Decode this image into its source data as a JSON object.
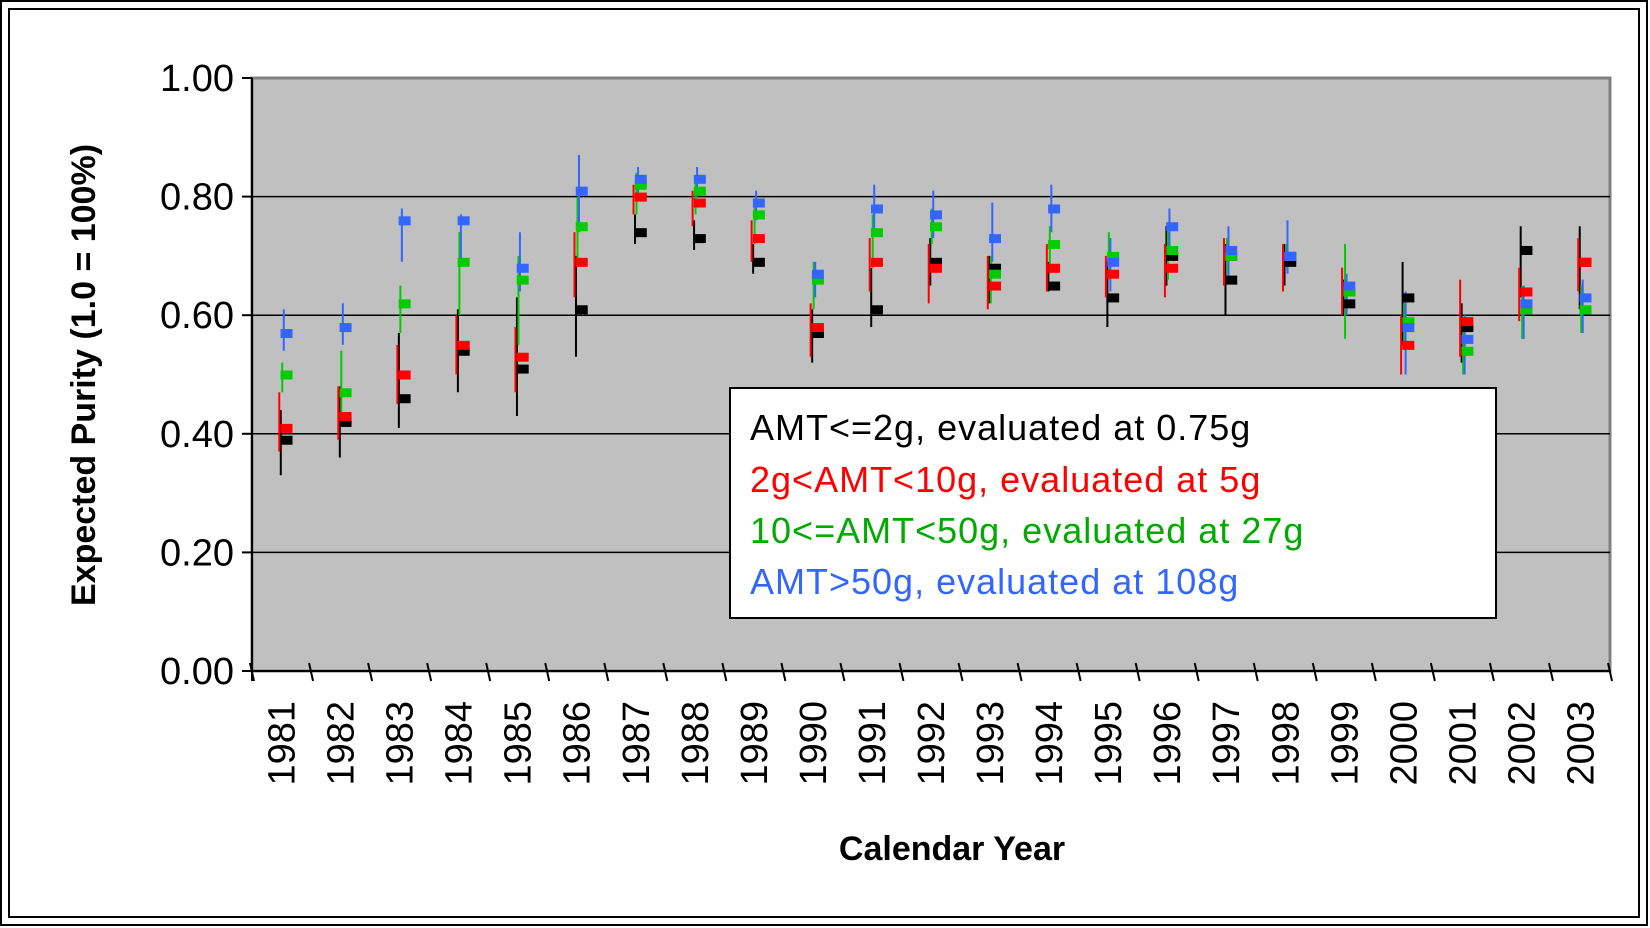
{
  "chart_data": {
    "type": "scatter",
    "xlabel": "Calendar Year",
    "ylabel": "Expected Purity (1.0 = 100%)",
    "ylim": [
      0,
      1.0
    ],
    "yticks": [
      "0.00",
      "0.20",
      "0.40",
      "0.60",
      "0.80",
      "1.00"
    ],
    "grid": true,
    "legend_position": "center-right",
    "plot_background": "#c0c0c0",
    "categories": [
      "1981",
      "1982",
      "1983",
      "1984",
      "1985",
      "1986",
      "1987",
      "1988",
      "1989",
      "1990",
      "1991",
      "1992",
      "1993",
      "1994",
      "1995",
      "1996",
      "1997",
      "1998",
      "1999",
      "2000",
      "2001",
      "2002",
      "2003"
    ],
    "series": [
      {
        "name": "AMT<=2g, evaluated at 0.75g",
        "color": "#000000",
        "values": [
          0.39,
          0.42,
          0.46,
          0.54,
          0.51,
          0.61,
          0.74,
          0.73,
          0.69,
          0.57,
          0.61,
          0.69,
          0.68,
          0.65,
          0.63,
          0.7,
          0.66,
          0.69,
          0.62,
          0.63,
          0.58,
          0.71,
          0.69
        ],
        "low": [
          0.33,
          0.36,
          0.41,
          0.47,
          0.43,
          0.53,
          0.72,
          0.71,
          0.67,
          0.52,
          0.58,
          0.65,
          0.62,
          0.64,
          0.58,
          0.65,
          0.6,
          0.65,
          0.6,
          0.55,
          0.52,
          0.63,
          0.61
        ],
        "high": [
          0.44,
          0.48,
          0.57,
          0.61,
          0.63,
          0.7,
          0.77,
          0.76,
          0.72,
          0.61,
          0.68,
          0.73,
          0.7,
          0.69,
          0.69,
          0.75,
          0.72,
          0.72,
          0.66,
          0.69,
          0.62,
          0.75,
          0.75
        ]
      },
      {
        "name": "2g<AMT<10g, evaluated at 5g",
        "color": "#ff0000",
        "values": [
          0.41,
          0.43,
          0.5,
          0.55,
          0.53,
          0.69,
          0.8,
          0.79,
          0.73,
          0.58,
          0.69,
          0.68,
          0.65,
          0.68,
          0.67,
          0.68,
          0.7,
          0.7,
          0.64,
          0.55,
          0.59,
          0.64,
          0.69
        ],
        "low": [
          0.37,
          0.39,
          0.45,
          0.5,
          0.47,
          0.63,
          0.77,
          0.75,
          0.69,
          0.53,
          0.64,
          0.62,
          0.61,
          0.64,
          0.63,
          0.63,
          0.65,
          0.64,
          0.6,
          0.5,
          0.53,
          0.59,
          0.64
        ],
        "high": [
          0.47,
          0.48,
          0.55,
          0.6,
          0.58,
          0.74,
          0.82,
          0.81,
          0.76,
          0.62,
          0.73,
          0.72,
          0.7,
          0.72,
          0.7,
          0.72,
          0.73,
          0.72,
          0.68,
          0.6,
          0.66,
          0.68,
          0.73
        ]
      },
      {
        "name": "10<=AMT<50g, evaluated at 27g",
        "color": "#00cc00",
        "values": [
          0.5,
          0.47,
          0.62,
          0.69,
          0.66,
          0.75,
          0.82,
          0.81,
          0.77,
          0.66,
          0.74,
          0.75,
          0.67,
          0.72,
          0.7,
          0.71,
          0.7,
          0.7,
          0.64,
          0.59,
          0.54,
          0.61,
          0.61
        ],
        "low": [
          0.47,
          0.43,
          0.57,
          0.6,
          0.55,
          0.69,
          0.77,
          0.77,
          0.72,
          0.61,
          0.68,
          0.72,
          0.62,
          0.67,
          0.66,
          0.66,
          0.67,
          0.68,
          0.56,
          0.55,
          0.5,
          0.56,
          0.57
        ],
        "high": [
          0.52,
          0.54,
          0.65,
          0.74,
          0.7,
          0.8,
          0.84,
          0.83,
          0.79,
          0.69,
          0.77,
          0.78,
          0.7,
          0.75,
          0.74,
          0.74,
          0.73,
          0.72,
          0.72,
          0.62,
          0.58,
          0.65,
          0.65
        ]
      },
      {
        "name": "AMT>50g, evaluated at 108g",
        "color": "#3366ff",
        "values": [
          0.57,
          0.58,
          0.76,
          0.76,
          0.68,
          0.81,
          0.83,
          0.83,
          0.79,
          0.67,
          0.78,
          0.77,
          0.73,
          0.78,
          0.69,
          0.75,
          0.71,
          0.7,
          0.65,
          0.58,
          0.56,
          0.62,
          0.63
        ],
        "low": [
          0.54,
          0.55,
          0.69,
          0.69,
          0.64,
          0.74,
          0.8,
          0.8,
          0.76,
          0.63,
          0.74,
          0.73,
          0.69,
          0.74,
          0.64,
          0.71,
          0.66,
          0.67,
          0.6,
          0.5,
          0.5,
          0.56,
          0.57
        ],
        "high": [
          0.61,
          0.62,
          0.78,
          0.77,
          0.74,
          0.87,
          0.85,
          0.85,
          0.81,
          0.69,
          0.82,
          0.81,
          0.79,
          0.82,
          0.73,
          0.78,
          0.75,
          0.76,
          0.67,
          0.64,
          0.6,
          0.65,
          0.66
        ]
      }
    ]
  }
}
